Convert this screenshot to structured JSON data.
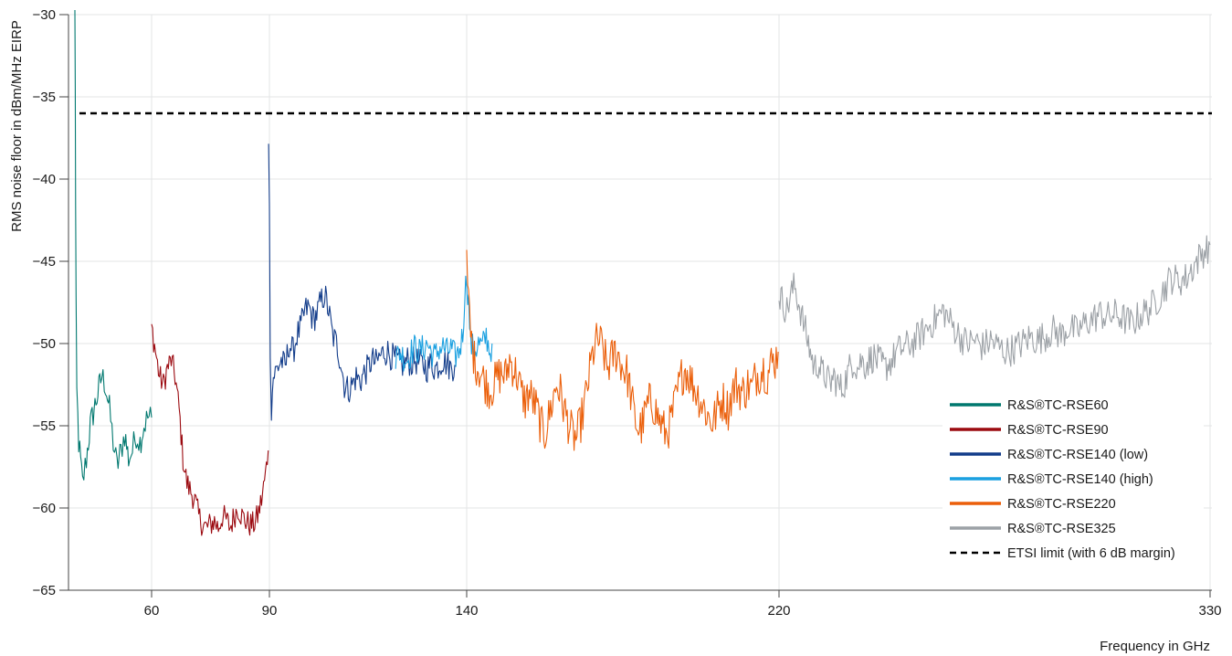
{
  "chart_data": {
    "type": "line",
    "title": "",
    "xlabel": "Frequency in GHz",
    "ylabel": "RMS noise floor in dBm/MHz EIRP",
    "xlim": [
      40,
      330
    ],
    "ylim": [
      -65,
      -30
    ],
    "x_scale": "piecewise-linear (tick positions as printed)",
    "x_ticks": [
      60,
      90,
      140,
      220,
      330
    ],
    "x_tick_labels": [
      "60",
      "90",
      "140",
      "220",
      "330"
    ],
    "y_ticks": [
      -30,
      -35,
      -40,
      -45,
      -50,
      -55,
      -60,
      -65
    ],
    "y_tick_labels": [
      "−30",
      "−35",
      "−40",
      "−45",
      "−50",
      "−55",
      "−60",
      "−65"
    ],
    "grid": true,
    "legend_position": "bottom-right",
    "series": [
      {
        "name": "R&S®TC-RSE60",
        "color": "#00786F",
        "points": [
          [
            40,
            -30
          ],
          [
            40.1,
            -34
          ],
          [
            40.2,
            -42
          ],
          [
            40.3,
            -48
          ],
          [
            40.5,
            -53
          ],
          [
            41,
            -56
          ],
          [
            42,
            -58.5
          ],
          [
            43,
            -57
          ],
          [
            44,
            -55
          ],
          [
            45,
            -54
          ],
          [
            46,
            -53
          ],
          [
            47,
            -52
          ],
          [
            48,
            -52.5
          ],
          [
            49,
            -54
          ],
          [
            50,
            -56
          ],
          [
            51,
            -57.5
          ],
          [
            52,
            -56.5
          ],
          [
            53,
            -55.5
          ],
          [
            54,
            -57
          ],
          [
            55,
            -56.5
          ],
          [
            56,
            -55.5
          ],
          [
            57,
            -56
          ],
          [
            58,
            -55
          ],
          [
            59,
            -54.5
          ],
          [
            60,
            -54.5
          ]
        ],
        "noise": 0.9
      },
      {
        "name": "R&S®TC-RSE90",
        "color": "#9B0A10",
        "points": [
          [
            60,
            -49
          ],
          [
            61,
            -50.5
          ],
          [
            62,
            -52
          ],
          [
            63,
            -52.5
          ],
          [
            64,
            -51.5
          ],
          [
            65,
            -51
          ],
          [
            66,
            -52
          ],
          [
            67,
            -54
          ],
          [
            68,
            -57
          ],
          [
            69,
            -58.5
          ],
          [
            70,
            -59
          ],
          [
            71,
            -59.5
          ],
          [
            72,
            -60.5
          ],
          [
            73,
            -61
          ],
          [
            74,
            -61.2
          ],
          [
            75,
            -61
          ],
          [
            76,
            -60.8
          ],
          [
            77,
            -61.2
          ],
          [
            78,
            -60.5
          ],
          [
            79,
            -60.7
          ],
          [
            80,
            -61.2
          ],
          [
            81,
            -60.5
          ],
          [
            82,
            -60
          ],
          [
            83,
            -60.5
          ],
          [
            84,
            -60.8
          ],
          [
            85,
            -61
          ],
          [
            86,
            -61
          ],
          [
            87,
            -60.5
          ],
          [
            88,
            -59.5
          ],
          [
            89,
            -58
          ],
          [
            89.7,
            -56.5
          ]
        ],
        "noise": 0.8
      },
      {
        "name": "R&S®TC-RSE140 (low)",
        "color": "#123C8A",
        "points": [
          [
            89.8,
            -37.2
          ],
          [
            90,
            -42
          ],
          [
            90.2,
            -50
          ],
          [
            90.5,
            -54
          ],
          [
            91,
            -52
          ],
          [
            92,
            -51.5
          ],
          [
            93,
            -51
          ],
          [
            94,
            -51.5
          ],
          [
            95,
            -50
          ],
          [
            96,
            -50.5
          ],
          [
            97,
            -49.5
          ],
          [
            98,
            -49
          ],
          [
            99,
            -48
          ],
          [
            100,
            -47.8
          ],
          [
            101,
            -48.5
          ],
          [
            102,
            -48.2
          ],
          [
            103,
            -47.5
          ],
          [
            104,
            -47
          ],
          [
            105,
            -48
          ],
          [
            106,
            -49.5
          ],
          [
            107,
            -50
          ],
          [
            108,
            -51
          ],
          [
            109,
            -52.5
          ],
          [
            110,
            -52.8
          ],
          [
            111,
            -52.5
          ],
          [
            112,
            -52
          ],
          [
            113,
            -52.3
          ],
          [
            114,
            -51.8
          ],
          [
            115,
            -51.5
          ],
          [
            116,
            -51
          ],
          [
            117,
            -51.2
          ],
          [
            118,
            -50.8
          ],
          [
            119,
            -50.5
          ],
          [
            120,
            -50.5
          ],
          [
            121,
            -50.8
          ],
          [
            122,
            -51
          ],
          [
            123,
            -51.2
          ],
          [
            124,
            -51.3
          ],
          [
            125,
            -51
          ],
          [
            126,
            -51.2
          ],
          [
            127,
            -51
          ],
          [
            128,
            -51.2
          ],
          [
            129,
            -51.3
          ],
          [
            130,
            -51.5
          ],
          [
            131,
            -51.2
          ],
          [
            132,
            -51.5
          ],
          [
            133,
            -51.3
          ],
          [
            134,
            -51
          ],
          [
            135,
            -51.2
          ],
          [
            136,
            -51.5
          ],
          [
            137,
            -51.3
          ]
        ],
        "noise": 0.9
      },
      {
        "name": "R&S®TC-RSE140 (high)",
        "color": "#1AA0E0",
        "points": [
          [
            122,
            -51
          ],
          [
            123,
            -50.5
          ],
          [
            124,
            -50.8
          ],
          [
            125,
            -51
          ],
          [
            126,
            -50.5
          ],
          [
            127,
            -50.2
          ],
          [
            128,
            -50.5
          ],
          [
            129,
            -50.3
          ],
          [
            130,
            -50
          ],
          [
            131,
            -50.5
          ],
          [
            132,
            -50.8
          ],
          [
            133,
            -50.3
          ],
          [
            134,
            -50.2
          ],
          [
            135,
            -50.5
          ],
          [
            136,
            -50.3
          ],
          [
            137,
            -50.8
          ],
          [
            138,
            -50.5
          ],
          [
            139,
            -49.5
          ],
          [
            139.5,
            -47
          ],
          [
            140,
            -46
          ],
          [
            140.5,
            -47.5
          ],
          [
            141,
            -50
          ],
          [
            142,
            -50.5
          ],
          [
            143,
            -50
          ],
          [
            144,
            -50.2
          ],
          [
            145,
            -49.5
          ],
          [
            146,
            -50.5
          ],
          [
            146.5,
            -50
          ]
        ],
        "noise": 0.9
      },
      {
        "name": "R&S®TC-RSE220",
        "color": "#EB5F0A",
        "points": [
          [
            140,
            -45.5
          ],
          [
            140.5,
            -47.5
          ],
          [
            141,
            -49.5
          ],
          [
            142,
            -51
          ],
          [
            143,
            -51.5
          ],
          [
            144,
            -52
          ],
          [
            145,
            -52.5
          ],
          [
            146,
            -52.8
          ],
          [
            147,
            -52.5
          ],
          [
            148,
            -52
          ],
          [
            149,
            -51.8
          ],
          [
            150,
            -52
          ],
          [
            151,
            -51
          ],
          [
            152,
            -51.5
          ],
          [
            153,
            -52
          ],
          [
            154,
            -53
          ],
          [
            155,
            -53.5
          ],
          [
            156,
            -53
          ],
          [
            157,
            -53.5
          ],
          [
            158,
            -54
          ],
          [
            159,
            -55
          ],
          [
            160,
            -55.5
          ],
          [
            161,
            -54.5
          ],
          [
            162,
            -53.5
          ],
          [
            163,
            -52.5
          ],
          [
            164,
            -53
          ],
          [
            165,
            -54
          ],
          [
            166,
            -54.8
          ],
          [
            167,
            -55.5
          ],
          [
            168,
            -55.8
          ],
          [
            169,
            -55
          ],
          [
            170,
            -54
          ],
          [
            171,
            -52.5
          ],
          [
            172,
            -51
          ],
          [
            173,
            -50
          ],
          [
            174,
            -49.8
          ],
          [
            175,
            -50.5
          ],
          [
            176,
            -51.5
          ],
          [
            177,
            -51
          ],
          [
            178,
            -50.5
          ],
          [
            179,
            -50.8
          ],
          [
            180,
            -51.5
          ],
          [
            181,
            -51.8
          ],
          [
            182,
            -53
          ],
          [
            183,
            -54.5
          ],
          [
            184,
            -55.2
          ],
          [
            185,
            -55
          ],
          [
            186,
            -54
          ],
          [
            187,
            -53.5
          ],
          [
            188,
            -53.8
          ],
          [
            189,
            -54.5
          ],
          [
            190,
            -55
          ],
          [
            191,
            -55.5
          ],
          [
            192,
            -55
          ],
          [
            193,
            -54
          ],
          [
            194,
            -53
          ],
          [
            195,
            -52
          ],
          [
            196,
            -51.5
          ],
          [
            197,
            -52
          ],
          [
            198,
            -52.5
          ],
          [
            199,
            -53
          ],
          [
            200,
            -53.5
          ],
          [
            201,
            -54
          ],
          [
            202,
            -54.5
          ],
          [
            203,
            -54.8
          ],
          [
            204,
            -54.2
          ],
          [
            205,
            -53.5
          ],
          [
            206,
            -53.5
          ],
          [
            207,
            -54
          ],
          [
            208,
            -53
          ],
          [
            209,
            -52.5
          ],
          [
            210,
            -52.8
          ],
          [
            211,
            -53
          ],
          [
            212,
            -52.5
          ],
          [
            213,
            -52.8
          ],
          [
            214,
            -52
          ],
          [
            215,
            -51.8
          ],
          [
            216,
            -51.5
          ],
          [
            217,
            -52
          ],
          [
            218,
            -51.2
          ],
          [
            219,
            -51
          ],
          [
            219.8,
            -50.5
          ]
        ],
        "noise": 1.3
      },
      {
        "name": "R&S®TC-RSE325",
        "color": "#9CA1A6",
        "points": [
          [
            220,
            -47
          ],
          [
            221,
            -47.5
          ],
          [
            222,
            -48
          ],
          [
            223,
            -47
          ],
          [
            224,
            -46.5
          ],
          [
            225,
            -47.5
          ],
          [
            226,
            -48.5
          ],
          [
            227,
            -49.5
          ],
          [
            228,
            -50.5
          ],
          [
            229,
            -51.5
          ],
          [
            230,
            -51.2
          ],
          [
            231,
            -51.8
          ],
          [
            232,
            -52
          ],
          [
            233,
            -52.5
          ],
          [
            234,
            -52
          ],
          [
            235,
            -52.5
          ],
          [
            236,
            -52.8
          ],
          [
            237,
            -52.2
          ],
          [
            238,
            -51.5
          ],
          [
            239,
            -51
          ],
          [
            240,
            -51.5
          ],
          [
            241,
            -51
          ],
          [
            242,
            -51.3
          ],
          [
            243,
            -51
          ],
          [
            244,
            -50.8
          ],
          [
            245,
            -51
          ],
          [
            246,
            -51.2
          ],
          [
            247,
            -51.5
          ],
          [
            248,
            -51.2
          ],
          [
            249,
            -51
          ],
          [
            250,
            -50.5
          ],
          [
            252,
            -50.2
          ],
          [
            254,
            -50
          ],
          [
            256,
            -49.5
          ],
          [
            258,
            -49
          ],
          [
            260,
            -48.5
          ],
          [
            262,
            -48
          ],
          [
            264,
            -48.8
          ],
          [
            266,
            -49.5
          ],
          [
            268,
            -50
          ],
          [
            270,
            -49.8
          ],
          [
            272,
            -50.2
          ],
          [
            274,
            -49.8
          ],
          [
            276,
            -50.2
          ],
          [
            278,
            -50.5
          ],
          [
            280,
            -50.3
          ],
          [
            282,
            -50
          ],
          [
            284,
            -49.6
          ],
          [
            286,
            -49.8
          ],
          [
            288,
            -49.5
          ],
          [
            290,
            -49.2
          ],
          [
            292,
            -49.5
          ],
          [
            294,
            -49
          ],
          [
            296,
            -49.3
          ],
          [
            298,
            -48.8
          ],
          [
            300,
            -48.5
          ],
          [
            302,
            -48.2
          ],
          [
            304,
            -48.4
          ],
          [
            306,
            -48.2
          ],
          [
            308,
            -48.5
          ],
          [
            310,
            -48.8
          ],
          [
            312,
            -48.3
          ],
          [
            314,
            -48
          ],
          [
            316,
            -47.5
          ],
          [
            318,
            -46.8
          ],
          [
            320,
            -46
          ],
          [
            322,
            -46.2
          ],
          [
            324,
            -46
          ],
          [
            326,
            -45.2
          ],
          [
            328,
            -44.5
          ],
          [
            330,
            -44
          ]
        ],
        "noise": 1.0
      }
    ],
    "reference_lines": [
      {
        "name": "ETSI limit (with 6 dB margin)",
        "y": -36,
        "style": "dashed",
        "color": "#000000"
      }
    ]
  }
}
